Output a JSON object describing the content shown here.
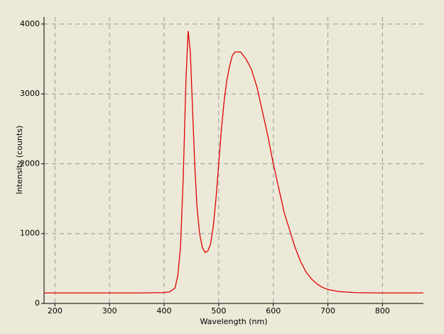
{
  "chart_data": {
    "type": "line",
    "xlabel": "Wavelength (nm)",
    "ylabel": "Intensity (counts)",
    "xlim": [
      180,
      875
    ],
    "ylim": [
      0,
      4100
    ],
    "xticks": [
      200,
      300,
      400,
      500,
      600,
      700,
      800
    ],
    "yticks": [
      0,
      1000,
      2000,
      3000,
      4000
    ],
    "grid": true,
    "series": [
      {
        "name": "Intensity",
        "color": "#e00000",
        "x": [
          180,
          250,
          300,
          350,
          400,
          410,
          420,
          425,
          430,
          435,
          440,
          444,
          448,
          452,
          456,
          460,
          465,
          470,
          475,
          480,
          485,
          490,
          495,
          500,
          505,
          510,
          515,
          520,
          525,
          530,
          540,
          550,
          560,
          570,
          580,
          590,
          600,
          610,
          620,
          630,
          640,
          650,
          660,
          670,
          680,
          690,
          700,
          720,
          750,
          800,
          875
        ],
        "values": [
          150,
          150,
          150,
          150,
          155,
          165,
          220,
          400,
          800,
          1800,
          3200,
          3900,
          3600,
          2800,
          2000,
          1400,
          1000,
          800,
          730,
          750,
          850,
          1100,
          1500,
          2000,
          2500,
          2900,
          3200,
          3400,
          3550,
          3600,
          3600,
          3500,
          3350,
          3100,
          2750,
          2400,
          2000,
          1650,
          1300,
          1050,
          800,
          600,
          450,
          350,
          280,
          230,
          200,
          170,
          155,
          150,
          150
        ]
      }
    ]
  }
}
